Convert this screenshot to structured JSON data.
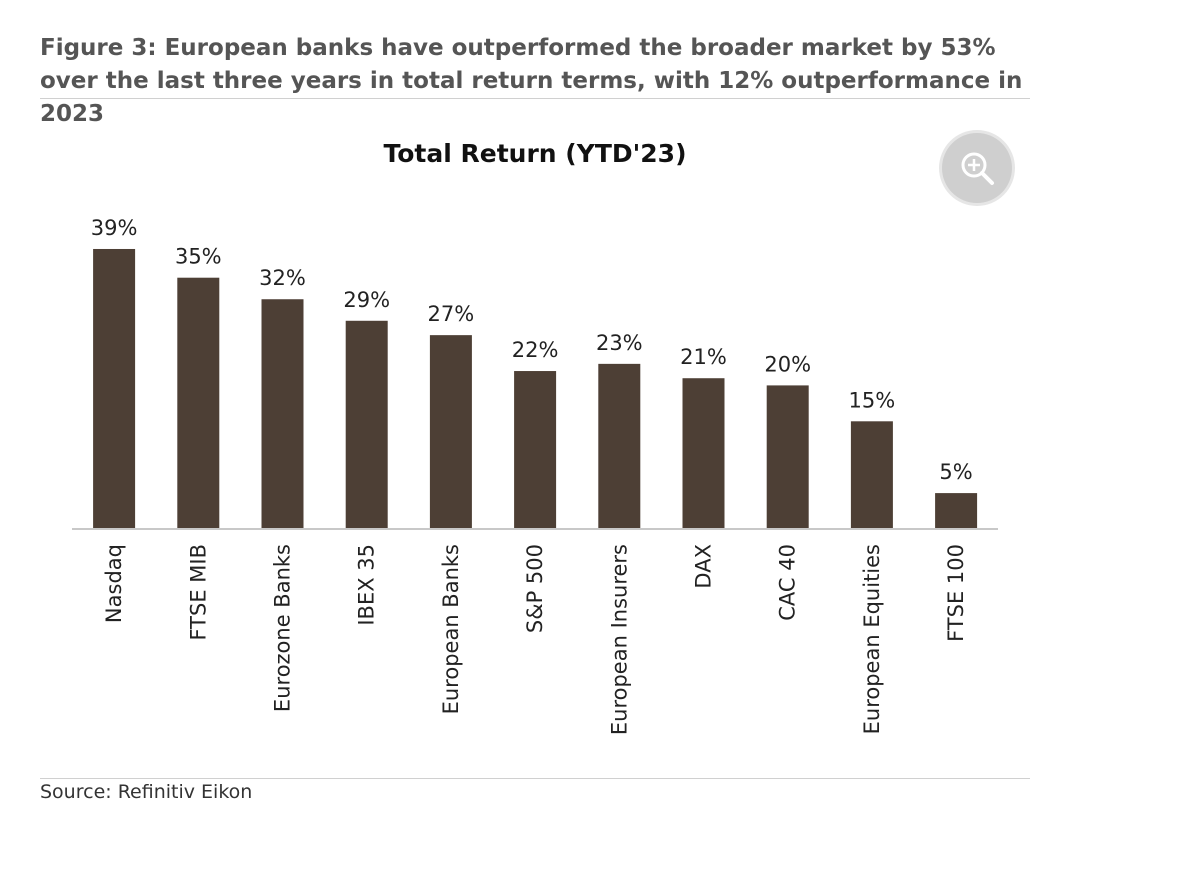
{
  "figure": {
    "caption": "Figure 3: European banks have outperformed the broader market by 53% over the last three years in total return terms, with 12% outperformance in 2023",
    "source": "Source: Refinitiv Eikon"
  },
  "zoom_icon": "zoom-in-icon",
  "chart_data": {
    "type": "bar",
    "title": "Total Return (YTD'23)",
    "categories": [
      "Nasdaq",
      "FTSE MIB",
      "Eurozone Banks",
      "IBEX 35",
      "European Banks",
      "S&P 500",
      "European Insurers",
      "DAX",
      "CAC 40",
      "European Equities",
      "FTSE 100"
    ],
    "values": [
      39,
      35,
      32,
      29,
      27,
      22,
      23,
      21,
      20,
      15,
      5
    ],
    "data_labels": [
      "39%",
      "35%",
      "32%",
      "29%",
      "27%",
      "22%",
      "23%",
      "21%",
      "20%",
      "15%",
      "5%"
    ],
    "xlabel": "",
    "ylabel": "",
    "ylim": [
      0,
      40
    ],
    "grid": false,
    "legend": "none",
    "bar_color": "#4d3f35",
    "axis_color": "#c8c8c8"
  }
}
